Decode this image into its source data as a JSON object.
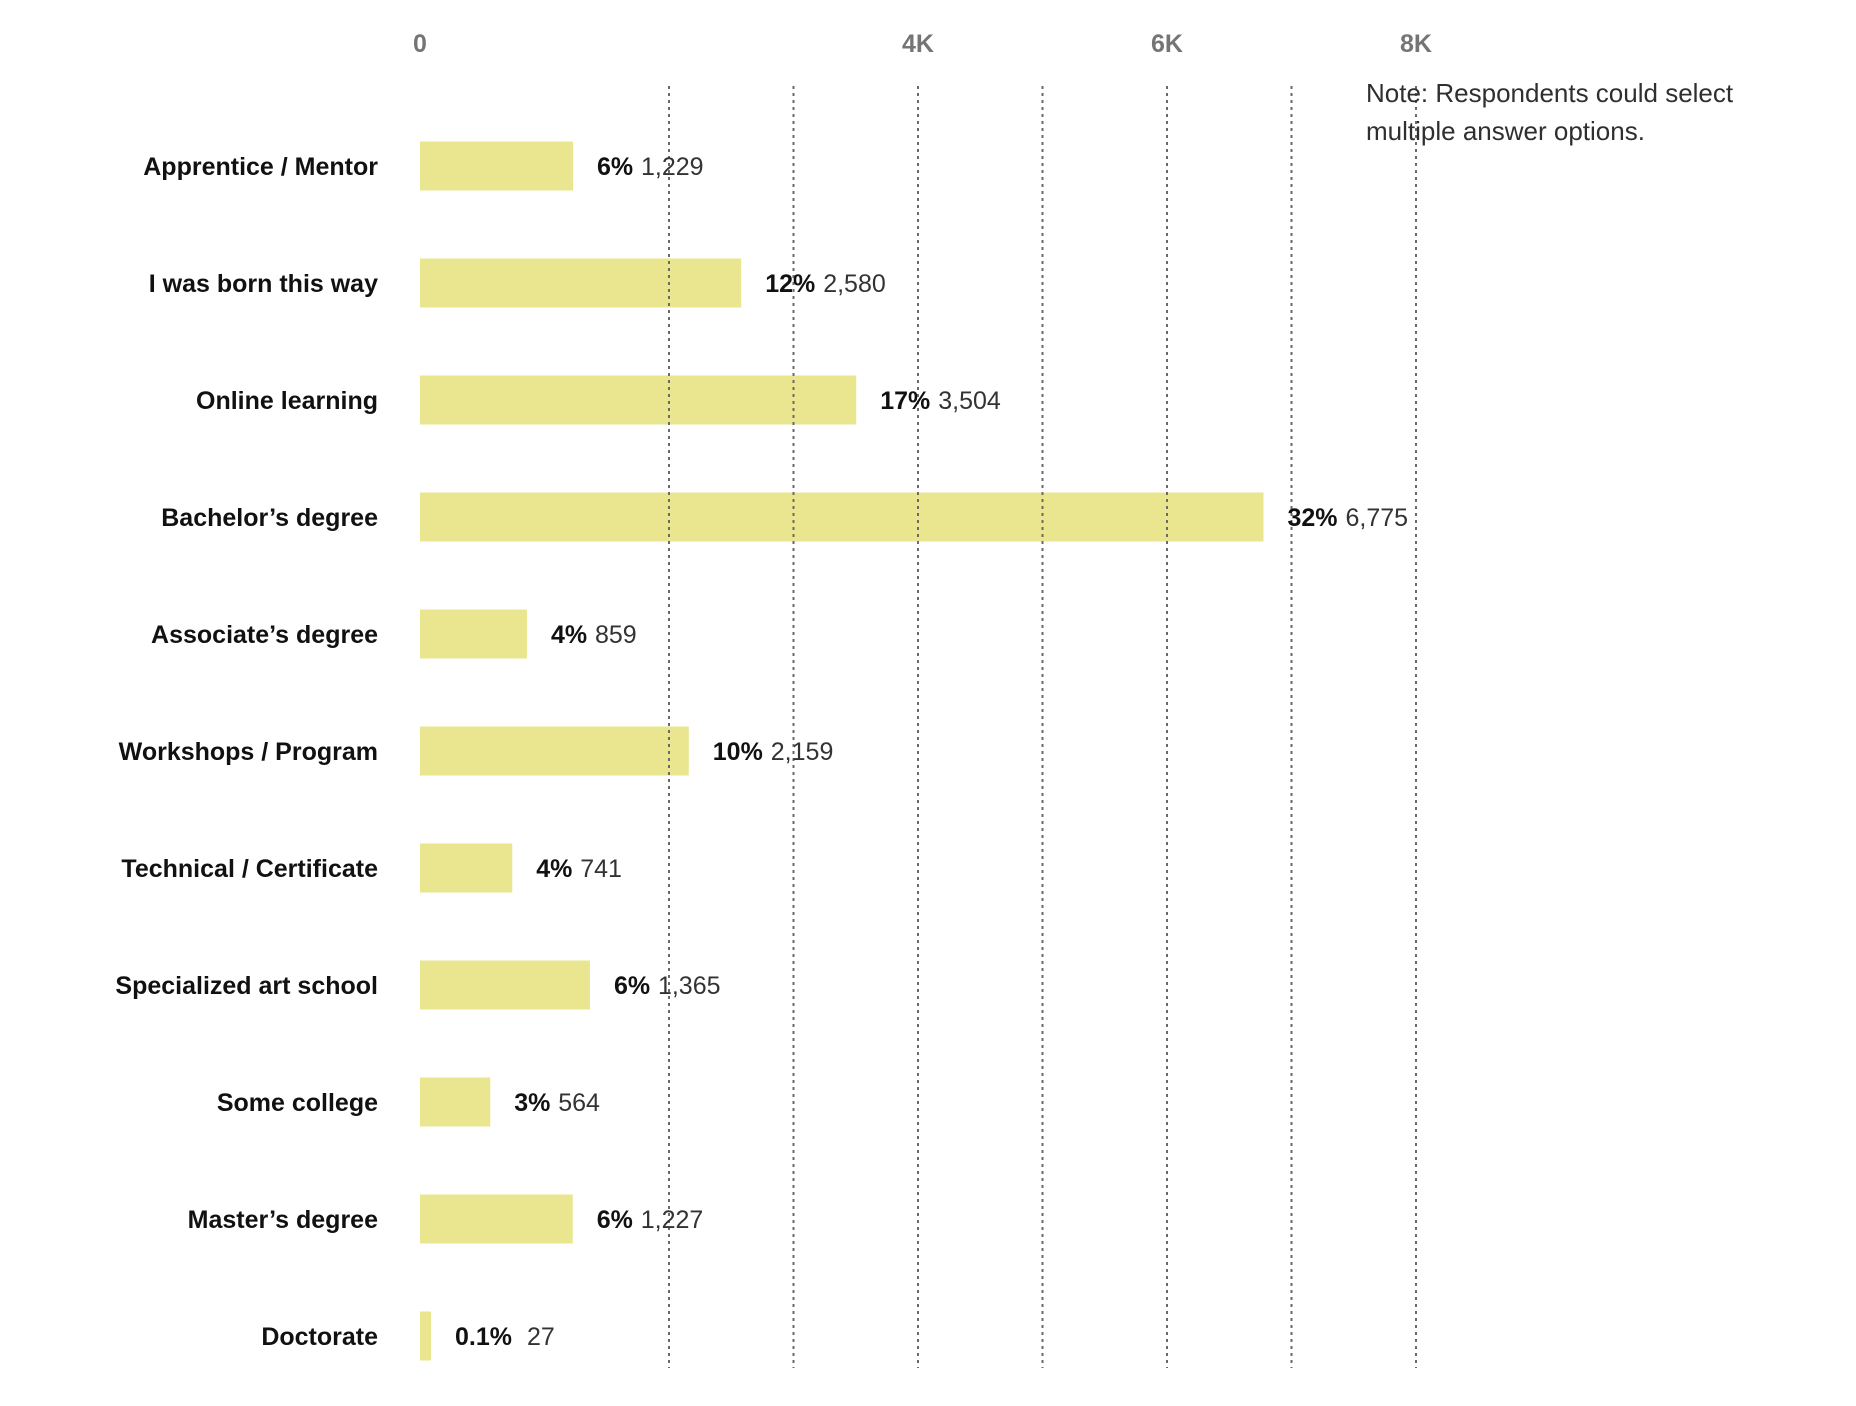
{
  "chart_data": {
    "type": "bar",
    "orientation": "horizontal",
    "title": "",
    "xlabel": "",
    "ylabel": "",
    "xlim": [
      0,
      8000
    ],
    "grid": true,
    "legend": "none",
    "x_ticks": [
      {
        "value": 0,
        "label": "0"
      },
      {
        "value": 4000,
        "label": "4K"
      },
      {
        "value": 6000,
        "label": "6K"
      },
      {
        "value": 8000,
        "label": "8K"
      }
    ],
    "gridlines": [
      2000,
      3000,
      4000,
      5000,
      6000,
      7000,
      8000
    ],
    "categories": [
      "Apprentice / Mentor",
      "I was born this way",
      "Online learning",
      "Bachelor’s degree",
      "Associate’s degree",
      "Workshops / Program",
      "Technical / Certificate",
      "Specialized art school",
      "Some college",
      "Master’s degree",
      "Doctorate"
    ],
    "values": [
      1229,
      2580,
      3504,
      6775,
      859,
      2159,
      741,
      1365,
      564,
      1227,
      27
    ],
    "value_labels": [
      "1,229",
      "2,580",
      "3,504",
      "6,775",
      "859",
      "2,159",
      "741",
      "1,365",
      "564",
      "1,227",
      "27"
    ],
    "percent_labels": [
      "6%",
      "12%",
      "17%",
      "32%",
      "4%",
      "10%",
      "4%",
      "6%",
      "3%",
      "6%",
      "0.1%"
    ],
    "note": "Note: Respondents could select multiple answer options.",
    "colors": {
      "bar": "#e9e68f",
      "grid": "#6a6a6a",
      "tick_text": "#757575",
      "label_text": "#111111",
      "value_text": "#333333"
    }
  }
}
